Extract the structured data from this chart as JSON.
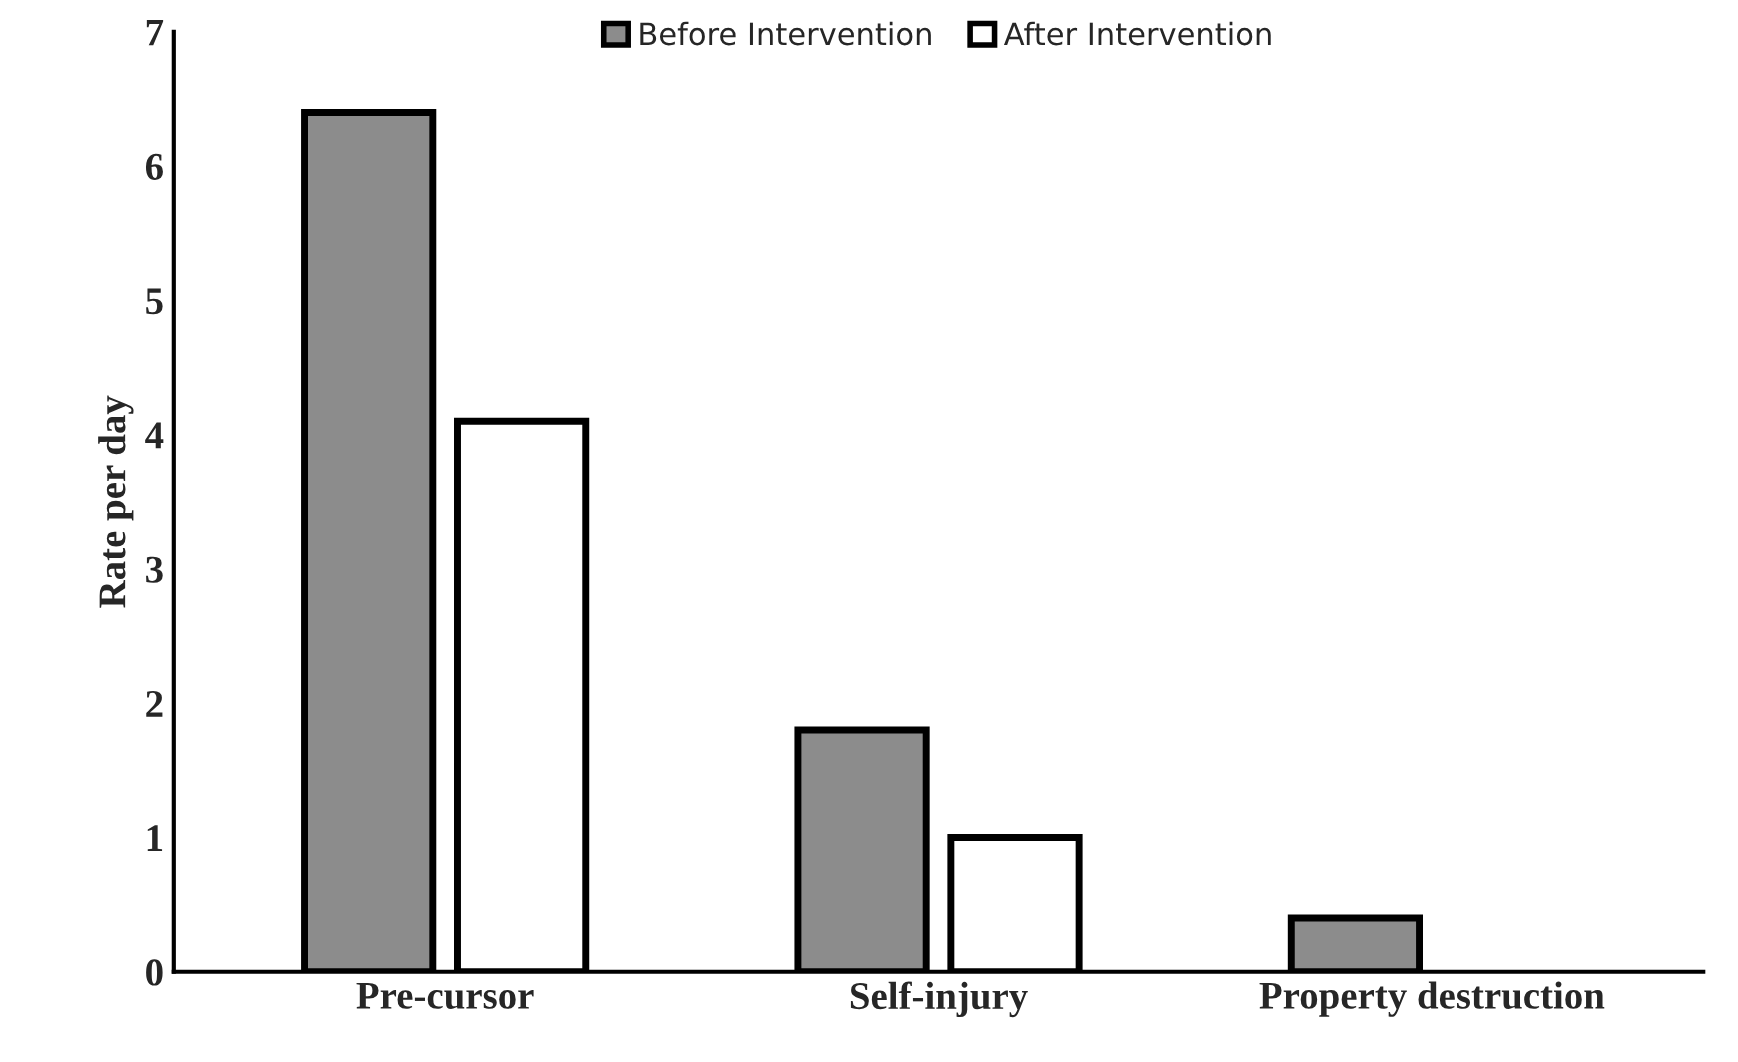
{
  "chart_data": {
    "type": "bar",
    "ylabel": "Rate per day",
    "categories": [
      "Pre-cursor",
      "Self-injury",
      "Property destruction"
    ],
    "series": [
      {
        "name": "Before Intervention",
        "color": "#8c8c8c",
        "values": [
          6.4,
          1.8,
          0.4
        ]
      },
      {
        "name": "After Intervention",
        "color": "#ffffff",
        "values": [
          4.1,
          1.0,
          null
        ]
      }
    ],
    "ylim": [
      0,
      7
    ],
    "yticks": [
      0,
      1,
      2,
      3,
      4,
      5,
      6,
      7
    ],
    "grid": false,
    "legend": "top"
  }
}
